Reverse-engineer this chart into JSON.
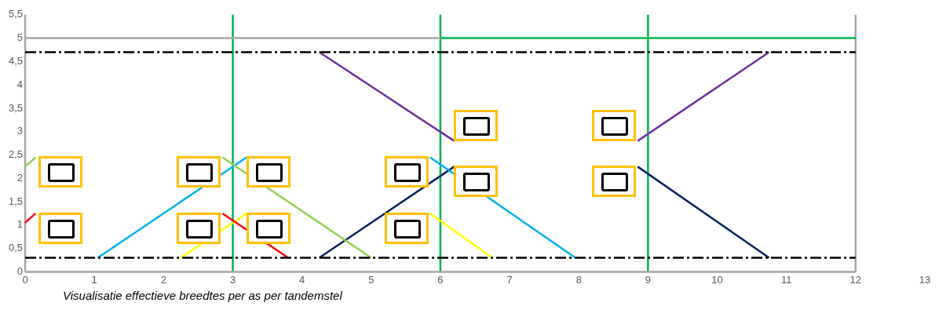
{
  "chart_data": {
    "type": "line",
    "annotations": [
      "Visualisatie effectieve breedtes per as per tandemstel"
    ],
    "xlim": [
      0,
      13
    ],
    "xticks": [
      0,
      1,
      2,
      3,
      4,
      5,
      6,
      7,
      8,
      9,
      10,
      11,
      12,
      13
    ],
    "ylim": [
      0,
      5.5
    ],
    "yticks": [
      0,
      {
        "value": 0.5,
        "label": "0,5"
      },
      1,
      {
        "value": 1.5,
        "label": "1,5"
      },
      2,
      {
        "value": 2.5,
        "label": "2,5"
      },
      3,
      {
        "value": 3.5,
        "label": "3,5"
      },
      4,
      {
        "value": 4.5,
        "label": "4,5"
      },
      5,
      {
        "value": 5.5,
        "label": "5,5"
      }
    ],
    "grid": false,
    "legend": false,
    "marker": "none",
    "ref_lines": [
      {
        "axis": "x",
        "value": 0,
        "color": "#a6a6a6"
      },
      {
        "axis": "x",
        "value": 3,
        "color": "#00b050"
      },
      {
        "axis": "x",
        "value": 6,
        "color": "#00b050"
      },
      {
        "axis": "x",
        "value": 9,
        "color": "#00b050"
      },
      {
        "axis": "x",
        "value": 12,
        "color": "#a6a6a6"
      }
    ],
    "series": [
      {
        "color": "#a6a6a6",
        "x": [
          0,
          12
        ],
        "values": [
          0,
          0
        ]
      },
      {
        "color": "#a6a6a6",
        "x": [
          0,
          6
        ],
        "values": [
          5,
          5
        ]
      },
      {
        "color": "#00b050",
        "x": [
          6,
          12
        ],
        "values": [
          5,
          5
        ]
      },
      {
        "color": "#000000",
        "x": [
          0,
          12
        ],
        "values": [
          4.7,
          4.7
        ],
        "line_style": "dashed"
      },
      {
        "color": "#000000",
        "x": [
          0,
          12
        ],
        "values": [
          0.3,
          0.3
        ],
        "line_style": "dashed"
      },
      {
        "color": "#ff0000",
        "x": [
          0,
          0.15
        ],
        "values": [
          1.05,
          1.25
        ]
      },
      {
        "color": "#ff0000",
        "x": [
          2.85,
          3.8
        ],
        "values": [
          1.25,
          0.3
        ]
      },
      {
        "color": "#92d050",
        "x": [
          0,
          0.15
        ],
        "values": [
          2.25,
          2.45
        ]
      },
      {
        "color": "#92d050",
        "x": [
          2.85,
          5
        ],
        "values": [
          2.45,
          0.3
        ]
      },
      {
        "color": "#00b0f0",
        "x": [
          1.05,
          3.2
        ],
        "values": [
          0.3,
          2.45
        ]
      },
      {
        "color": "#00b0f0",
        "x": [
          5.85,
          7.95
        ],
        "values": [
          2.45,
          0.3
        ]
      },
      {
        "color": "#ffff00",
        "x": [
          2.25,
          3.2
        ],
        "values": [
          0.3,
          1.25
        ]
      },
      {
        "color": "#ffff00",
        "x": [
          5.85,
          6.75
        ],
        "values": [
          1.25,
          0.3
        ]
      },
      {
        "color": "#002060",
        "x": [
          4.25,
          6.2
        ],
        "values": [
          0.3,
          2.25
        ]
      },
      {
        "color": "#002060",
        "x": [
          8.85,
          10.75
        ],
        "values": [
          2.25,
          0.3
        ]
      },
      {
        "color": "#7030a0",
        "x": [
          4.25,
          6.2
        ],
        "values": [
          4.7,
          2.8
        ]
      },
      {
        "color": "#7030a0",
        "x": [
          8.85,
          10.75
        ],
        "values": [
          2.8,
          4.7
        ]
      }
    ]
  }
}
